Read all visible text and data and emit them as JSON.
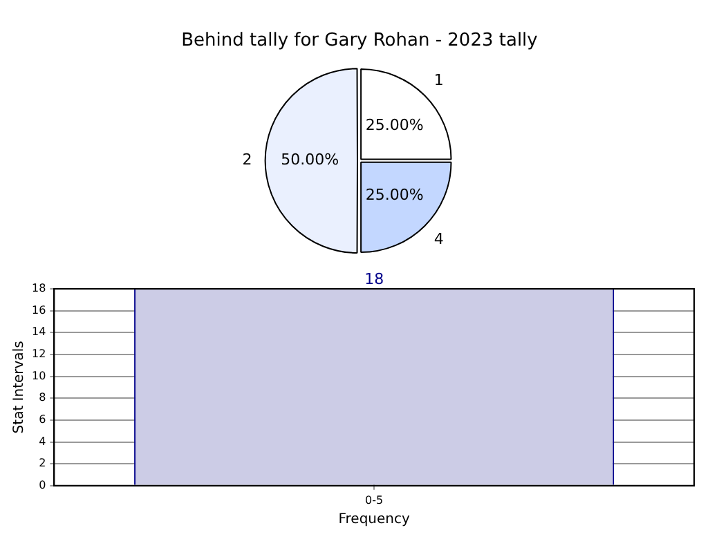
{
  "chart_data": [
    {
      "type": "pie",
      "title": "Behind tally for Gary Rohan - 2023 tally",
      "categories": [
        "1",
        "4",
        "2"
      ],
      "values": [
        25,
        25,
        50
      ],
      "colors": [
        "#ffffff",
        "#c3d7ff",
        "#eaf0fe"
      ],
      "value_labels": [
        "25.00%",
        "25.00%",
        "50.00%"
      ],
      "legend": false
    },
    {
      "type": "bar",
      "categories": [
        "0-5"
      ],
      "values": [
        18
      ],
      "color": "#ccccE6",
      "xlabel": "Frequency",
      "ylabel": "Stat Intervals",
      "ylim": [
        0,
        18
      ],
      "yticks": [
        0,
        2,
        4,
        6,
        8,
        10,
        12,
        14,
        16,
        18
      ],
      "grid": true,
      "data_labels": true,
      "legend": false
    }
  ]
}
